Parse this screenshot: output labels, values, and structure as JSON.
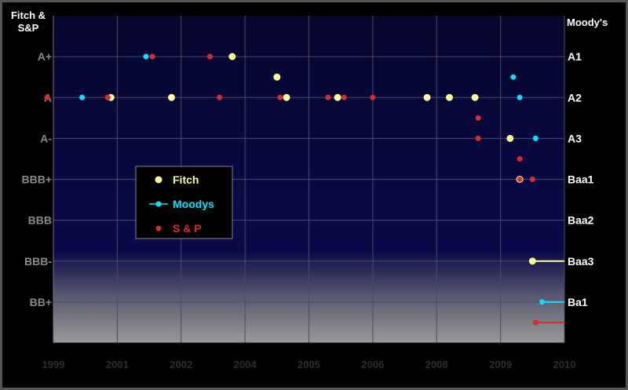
{
  "chart_data": {
    "type": "scatter",
    "left_axis_title": [
      "Fitch &",
      "S&P"
    ],
    "right_axis_title": "Moody's",
    "x_tick_labels": [
      "1999",
      "2001",
      "2002",
      "2004",
      "2005",
      "2006",
      "2008",
      "2009",
      "2010"
    ],
    "xlim": [
      1999.0,
      2007.0
    ],
    "ylim": [
      0,
      8
    ],
    "left_ratings": [
      {
        "label": "BB+",
        "level": 1
      },
      {
        "label": "BBB-",
        "level": 2
      },
      {
        "label": "BBB",
        "level": 3
      },
      {
        "label": "BBB+",
        "level": 4
      },
      {
        "label": "A-",
        "level": 5
      },
      {
        "label": "A",
        "level": 6
      },
      {
        "label": "A+",
        "level": 7
      }
    ],
    "right_ratings": [
      {
        "label": "Ba1",
        "level": 1
      },
      {
        "label": "Baa3",
        "level": 2
      },
      {
        "label": "Baa2",
        "level": 3
      },
      {
        "label": "Baa1",
        "level": 4
      },
      {
        "label": "A3",
        "level": 5
      },
      {
        "label": "A2",
        "level": 6
      },
      {
        "label": "A1",
        "level": 7
      }
    ],
    "series": [
      {
        "name": "Fitch",
        "color": "#ffff99",
        "points": [
          {
            "x": 1999.9,
            "y": 6
          },
          {
            "x": 2000.85,
            "y": 6
          },
          {
            "x": 2001.8,
            "y": 7
          },
          {
            "x": 2002.5,
            "y": 6.5
          },
          {
            "x": 2002.65,
            "y": 6
          },
          {
            "x": 2003.45,
            "y": 6
          },
          {
            "x": 2004.85,
            "y": 6
          },
          {
            "x": 2005.2,
            "y": 6
          },
          {
            "x": 2005.6,
            "y": 6
          },
          {
            "x": 2006.15,
            "y": 5
          },
          {
            "x": 2006.3,
            "y": 4
          },
          {
            "x": 2006.5,
            "y": 2
          }
        ]
      },
      {
        "name": "Moodys",
        "color": "#00e5ff",
        "points": [
          {
            "x": 1999.45,
            "y": 6
          },
          {
            "x": 2000.45,
            "y": 7
          },
          {
            "x": 2006.2,
            "y": 6.5
          },
          {
            "x": 2006.3,
            "y": 6
          },
          {
            "x": 2006.55,
            "y": 5
          },
          {
            "x": 2006.65,
            "y": 1
          }
        ]
      },
      {
        "name": "S & P",
        "color": "#dd2b2b",
        "points": [
          {
            "x": 1998.9,
            "y": 6
          },
          {
            "x": 1999.85,
            "y": 6
          },
          {
            "x": 2000.55,
            "y": 7
          },
          {
            "x": 2001.45,
            "y": 7
          },
          {
            "x": 2001.6,
            "y": 6
          },
          {
            "x": 2002.55,
            "y": 6
          },
          {
            "x": 2003.3,
            "y": 6
          },
          {
            "x": 2003.55,
            "y": 6
          },
          {
            "x": 2004.0,
            "y": 6
          },
          {
            "x": 2005.65,
            "y": 5.5
          },
          {
            "x": 2005.65,
            "y": 5
          },
          {
            "x": 2006.3,
            "y": 4.5
          },
          {
            "x": 2006.3,
            "y": 4
          },
          {
            "x": 2006.5,
            "y": 4
          },
          {
            "x": 2006.55,
            "y": 0.5
          }
        ]
      }
    ],
    "current": [
      {
        "series": "Fitch",
        "x": 2006.5,
        "y": 2
      },
      {
        "series": "Moodys",
        "x": 2006.65,
        "y": 1
      },
      {
        "series": "S & P",
        "x": 2006.55,
        "y": 0.5
      }
    ],
    "legend_position": "middle-left"
  }
}
